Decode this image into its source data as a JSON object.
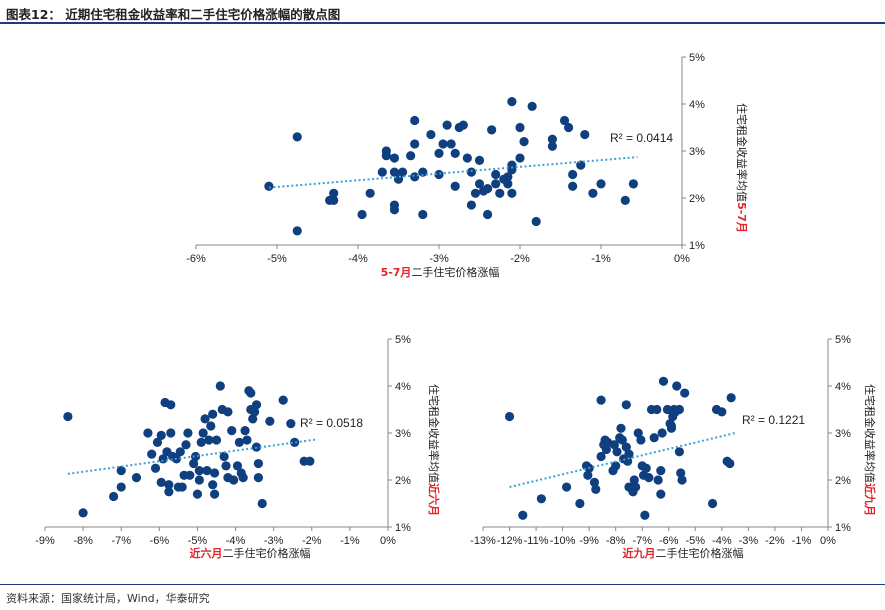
{
  "header": {
    "title": "图表12：  近期住宅租金收益率和二手住宅价格涨幅的散点图"
  },
  "footer": {
    "source": "资料来源：国家统计局，Wind，华泰研究"
  },
  "colors": {
    "point": "#103f80",
    "trend": "#3aa0d8",
    "red": "#e0262a",
    "rule": "#1b3d7a"
  },
  "chart_data": [
    {
      "type": "scatter",
      "xlabel_red": "5-7月",
      "xlabel": "二手住宅价格涨幅",
      "ylabel_red": "5-7月",
      "ylabel": "住宅租金收益率均值",
      "x_ticks": [
        "-6%",
        "-5%",
        "-4%",
        "-3%",
        "-2%",
        "-1%",
        "0%"
      ],
      "y_ticks": [
        "1%",
        "2%",
        "3%",
        "4%",
        "5%"
      ],
      "xlim": [
        -6,
        0
      ],
      "ylim": [
        1,
        5
      ],
      "trend": {
        "x": [
          -5.1,
          -0.55
        ],
        "y": [
          2.22,
          2.87
        ]
      },
      "r2": "R² = 0.0414",
      "points": [
        [
          -5.1,
          2.25
        ],
        [
          -4.75,
          3.3
        ],
        [
          -4.75,
          1.3
        ],
        [
          -4.35,
          1.95
        ],
        [
          -4.3,
          2.1
        ],
        [
          -4.3,
          1.95
        ],
        [
          -3.95,
          1.65
        ],
        [
          -3.85,
          2.1
        ],
        [
          -3.7,
          2.55
        ],
        [
          -3.65,
          3.0
        ],
        [
          -3.65,
          2.9
        ],
        [
          -3.55,
          2.85
        ],
        [
          -3.55,
          2.55
        ],
        [
          -3.55,
          1.85
        ],
        [
          -3.55,
          1.75
        ],
        [
          -3.5,
          2.4
        ],
        [
          -3.45,
          2.55
        ],
        [
          -3.35,
          2.9
        ],
        [
          -3.3,
          3.65
        ],
        [
          -3.3,
          3.15
        ],
        [
          -3.3,
          2.45
        ],
        [
          -3.2,
          1.65
        ],
        [
          -3.2,
          2.55
        ],
        [
          -3.1,
          3.35
        ],
        [
          -3.0,
          2.95
        ],
        [
          -3.0,
          2.5
        ],
        [
          -2.95,
          3.15
        ],
        [
          -2.9,
          3.55
        ],
        [
          -2.85,
          3.15
        ],
        [
          -2.8,
          2.95
        ],
        [
          -2.8,
          2.25
        ],
        [
          -2.75,
          3.5
        ],
        [
          -2.7,
          3.55
        ],
        [
          -2.65,
          2.85
        ],
        [
          -2.6,
          2.55
        ],
        [
          -2.6,
          1.85
        ],
        [
          -2.55,
          2.1
        ],
        [
          -2.5,
          2.8
        ],
        [
          -2.5,
          2.3
        ],
        [
          -2.45,
          2.15
        ],
        [
          -2.4,
          2.2
        ],
        [
          -2.4,
          1.65
        ],
        [
          -2.35,
          3.45
        ],
        [
          -2.3,
          2.5
        ],
        [
          -2.3,
          2.3
        ],
        [
          -2.25,
          2.1
        ],
        [
          -2.2,
          2.4
        ],
        [
          -2.15,
          2.45
        ],
        [
          -2.15,
          2.3
        ],
        [
          -2.1,
          4.05
        ],
        [
          -2.1,
          2.7
        ],
        [
          -2.1,
          2.6
        ],
        [
          -2.1,
          2.1
        ],
        [
          -2.0,
          3.5
        ],
        [
          -2.0,
          2.85
        ],
        [
          -1.95,
          3.2
        ],
        [
          -1.85,
          3.95
        ],
        [
          -1.8,
          1.5
        ],
        [
          -1.6,
          3.25
        ],
        [
          -1.6,
          3.1
        ],
        [
          -1.45,
          3.65
        ],
        [
          -1.4,
          3.5
        ],
        [
          -1.35,
          2.5
        ],
        [
          -1.35,
          2.25
        ],
        [
          -1.25,
          2.7
        ],
        [
          -1.2,
          3.35
        ],
        [
          -1.1,
          2.1
        ],
        [
          -1.0,
          2.3
        ],
        [
          -0.7,
          1.95
        ],
        [
          -0.6,
          2.3
        ]
      ]
    },
    {
      "type": "scatter",
      "xlabel_red": "近六月",
      "xlabel": "二手住宅价格涨幅",
      "ylabel_red": "近六月",
      "ylabel": "住宅租金收益率均值",
      "x_ticks": [
        "-9%",
        "-8%",
        "-7%",
        "-6%",
        "-5%",
        "-4%",
        "-3%",
        "-2%",
        "-1%",
        "0%"
      ],
      "y_ticks": [
        "1%",
        "2%",
        "3%",
        "4%",
        "5%"
      ],
      "xlim": [
        -9,
        0
      ],
      "ylim": [
        1,
        5
      ],
      "trend": {
        "x": [
          -8.4,
          -1.9
        ],
        "y": [
          2.13,
          2.86
        ]
      },
      "r2": "R² = 0.0518",
      "points": [
        [
          -8.4,
          3.35
        ],
        [
          -8.0,
          1.3
        ],
        [
          -7.2,
          1.65
        ],
        [
          -7.0,
          2.2
        ],
        [
          -7.0,
          1.85
        ],
        [
          -6.6,
          2.05
        ],
        [
          -6.3,
          3.0
        ],
        [
          -6.2,
          2.55
        ],
        [
          -6.1,
          2.25
        ],
        [
          -6.05,
          2.8
        ],
        [
          -5.95,
          2.95
        ],
        [
          -5.95,
          1.95
        ],
        [
          -5.9,
          2.45
        ],
        [
          -5.85,
          3.65
        ],
        [
          -5.8,
          2.6
        ],
        [
          -5.75,
          1.9
        ],
        [
          -5.75,
          1.75
        ],
        [
          -5.7,
          3.6
        ],
        [
          -5.7,
          3.0
        ],
        [
          -5.65,
          2.5
        ],
        [
          -5.55,
          2.45
        ],
        [
          -5.5,
          1.85
        ],
        [
          -5.45,
          2.6
        ],
        [
          -5.4,
          1.85
        ],
        [
          -5.35,
          2.1
        ],
        [
          -5.3,
          2.75
        ],
        [
          -5.25,
          3.0
        ],
        [
          -5.2,
          2.1
        ],
        [
          -5.1,
          2.35
        ],
        [
          -5.05,
          2.5
        ],
        [
          -5.0,
          1.7
        ],
        [
          -4.95,
          2.2
        ],
        [
          -4.95,
          2.0
        ],
        [
          -4.9,
          2.8
        ],
        [
          -4.85,
          3.0
        ],
        [
          -4.8,
          3.3
        ],
        [
          -4.75,
          2.2
        ],
        [
          -4.7,
          2.85
        ],
        [
          -4.65,
          3.15
        ],
        [
          -4.6,
          3.4
        ],
        [
          -4.6,
          1.9
        ],
        [
          -4.55,
          2.15
        ],
        [
          -4.55,
          1.7
        ],
        [
          -4.5,
          2.85
        ],
        [
          -4.4,
          4.0
        ],
        [
          -4.35,
          3.5
        ],
        [
          -4.3,
          2.5
        ],
        [
          -4.25,
          2.3
        ],
        [
          -4.2,
          2.05
        ],
        [
          -4.2,
          3.45
        ],
        [
          -4.1,
          3.05
        ],
        [
          -4.05,
          2.0
        ],
        [
          -3.95,
          2.3
        ],
        [
          -3.9,
          2.8
        ],
        [
          -3.85,
          2.15
        ],
        [
          -3.8,
          2.05
        ],
        [
          -3.75,
          3.05
        ],
        [
          -3.7,
          2.85
        ],
        [
          -3.65,
          3.9
        ],
        [
          -3.6,
          3.85
        ],
        [
          -3.6,
          3.5
        ],
        [
          -3.55,
          3.3
        ],
        [
          -3.5,
          3.45
        ],
        [
          -3.45,
          3.6
        ],
        [
          -3.45,
          2.7
        ],
        [
          -3.4,
          2.05
        ],
        [
          -3.4,
          2.35
        ],
        [
          -3.3,
          1.5
        ],
        [
          -3.1,
          3.25
        ],
        [
          -2.75,
          3.7
        ],
        [
          -2.55,
          3.2
        ],
        [
          -2.45,
          2.8
        ],
        [
          -2.2,
          2.4
        ],
        [
          -2.05,
          2.4
        ]
      ]
    },
    {
      "type": "scatter",
      "xlabel_red": "近九月",
      "xlabel": "二手住宅价格涨幅",
      "ylabel_red": "近九月",
      "ylabel": "住宅租金收益率均值",
      "x_ticks": [
        "-13%",
        "-12%",
        "-11%",
        "-10%",
        "-9%",
        "-8%",
        "-7%",
        "-6%",
        "-5%",
        "-4%",
        "-3%",
        "-2%",
        "-1%",
        "0%"
      ],
      "y_ticks": [
        "1%",
        "2%",
        "3%",
        "4%",
        "5%"
      ],
      "xlim": [
        -13,
        0
      ],
      "ylim": [
        1,
        5
      ],
      "trend": {
        "x": [
          -12.0,
          -3.5
        ],
        "y": [
          1.85,
          3.0
        ]
      },
      "r2": "R² = 0.1221",
      "points": [
        [
          -12.0,
          3.35
        ],
        [
          -11.5,
          1.25
        ],
        [
          -10.8,
          1.6
        ],
        [
          -9.85,
          1.85
        ],
        [
          -9.35,
          1.5
        ],
        [
          -9.1,
          2.3
        ],
        [
          -9.05,
          2.1
        ],
        [
          -9.0,
          2.25
        ],
        [
          -8.8,
          1.95
        ],
        [
          -8.75,
          1.8
        ],
        [
          -8.55,
          2.5
        ],
        [
          -8.55,
          3.7
        ],
        [
          -8.45,
          2.75
        ],
        [
          -8.4,
          2.85
        ],
        [
          -8.35,
          2.65
        ],
        [
          -8.3,
          2.8
        ],
        [
          -8.1,
          2.2
        ],
        [
          -8.05,
          2.75
        ],
        [
          -8.0,
          2.3
        ],
        [
          -7.95,
          2.6
        ],
        [
          -7.85,
          2.9
        ],
        [
          -7.8,
          3.1
        ],
        [
          -7.75,
          2.85
        ],
        [
          -7.7,
          2.45
        ],
        [
          -7.6,
          3.6
        ],
        [
          -7.6,
          2.7
        ],
        [
          -7.55,
          2.4
        ],
        [
          -7.5,
          2.55
        ],
        [
          -7.5,
          1.85
        ],
        [
          -7.35,
          1.75
        ],
        [
          -7.3,
          2.0
        ],
        [
          -7.25,
          1.85
        ],
        [
          -7.15,
          3.0
        ],
        [
          -7.05,
          2.85
        ],
        [
          -7.0,
          2.3
        ],
        [
          -6.95,
          2.1
        ],
        [
          -6.9,
          1.25
        ],
        [
          -6.85,
          2.25
        ],
        [
          -6.75,
          2.05
        ],
        [
          -6.65,
          3.5
        ],
        [
          -6.55,
          2.9
        ],
        [
          -6.45,
          3.5
        ],
        [
          -6.4,
          2.0
        ],
        [
          -6.3,
          1.7
        ],
        [
          -6.3,
          2.2
        ],
        [
          -6.25,
          3.0
        ],
        [
          -6.2,
          4.1
        ],
        [
          -6.05,
          3.5
        ],
        [
          -5.95,
          3.2
        ],
        [
          -5.9,
          3.15
        ],
        [
          -5.9,
          3.1
        ],
        [
          -5.85,
          3.35
        ],
        [
          -5.8,
          3.5
        ],
        [
          -5.75,
          3.45
        ],
        [
          -5.7,
          4.0
        ],
        [
          -5.6,
          2.6
        ],
        [
          -5.6,
          3.5
        ],
        [
          -5.55,
          2.15
        ],
        [
          -5.5,
          2.0
        ],
        [
          -5.4,
          3.85
        ],
        [
          -4.35,
          1.5
        ],
        [
          -4.2,
          3.5
        ],
        [
          -4.0,
          3.45
        ],
        [
          -3.8,
          2.4
        ],
        [
          -3.7,
          2.35
        ],
        [
          -3.65,
          3.75
        ]
      ]
    }
  ]
}
